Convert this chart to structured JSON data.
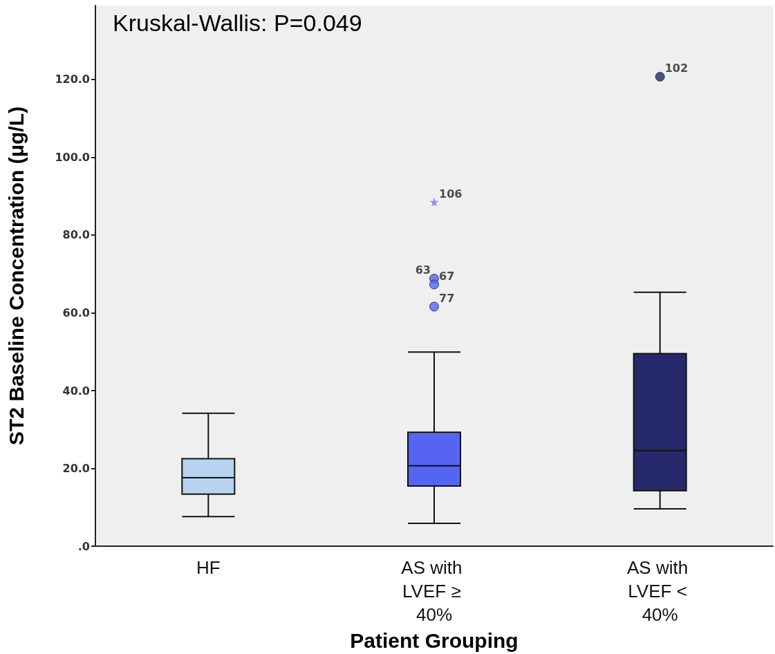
{
  "chart_data": {
    "type": "box",
    "xlabel": "Patient Grouping",
    "ylabel": "ST2 Baseline Concentration (μg/L)",
    "categories": [
      "HF",
      "AS with LVEF ≥ 40%",
      "AS with LVEF < 40%"
    ],
    "series": [
      {
        "colors": [
          "#b7d3ef",
          "#5565f2",
          "#262a6c"
        ],
        "boxes": [
          {
            "low": 7.6,
            "q1": 13.4,
            "median": 17.6,
            "q3": 22.5,
            "high": 34.2
          },
          {
            "low": 5.9,
            "q1": 15.5,
            "median": 20.7,
            "q3": 29.3,
            "high": 49.9
          },
          {
            "low": 9.6,
            "q1": 14.3,
            "median": 24.6,
            "q3": 49.5,
            "high": 65.3
          }
        ]
      },
      {
        "type": "scatter",
        "marker": "circle",
        "color": "#5565f2",
        "x": [
          "AS with LVEF ≥ 40%",
          "AS with LVEF ≥ 40%",
          "AS with LVEF ≥ 40%"
        ],
        "values": [
          68.8,
          67.3,
          61.6
        ]
      },
      {
        "type": "scatter",
        "marker": "circle",
        "color": "#262a6c",
        "x": [
          "AS with LVEF < 40%"
        ],
        "values": [
          120.7
        ]
      },
      {
        "type": "scatter",
        "marker": "star",
        "color": "#6a78f5",
        "x": [
          "AS with LVEF ≥ 40%"
        ],
        "values": [
          88.5
        ]
      }
    ],
    "ylim": [
      0,
      139
    ],
    "yticks": [
      {
        "value": 0,
        "label": ".0"
      },
      {
        "value": 20,
        "label": "20.0"
      },
      {
        "value": 40,
        "label": "40.0"
      },
      {
        "value": 60,
        "label": "60.0"
      },
      {
        "value": 80,
        "label": "80.0"
      },
      {
        "value": 100,
        "label": "100.0"
      },
      {
        "value": 120,
        "label": "120.0"
      }
    ],
    "grid": false,
    "annotations": [
      "Kruskal-Wallis: P=0.049",
      {
        "text": "106",
        "x": "AS with LVEF ≥ 40%",
        "y": 88.5
      },
      {
        "text": "63",
        "x": "AS with LVEF ≥ 40%",
        "y": 68.8
      },
      {
        "text": "67",
        "x": "AS with LVEF ≥ 40%",
        "y": 67.3
      },
      {
        "text": "77",
        "x": "AS with LVEF ≥ 40%",
        "y": 61.6
      },
      {
        "text": "102",
        "x": "AS with LVEF < 40%",
        "y": 120.7
      }
    ]
  }
}
